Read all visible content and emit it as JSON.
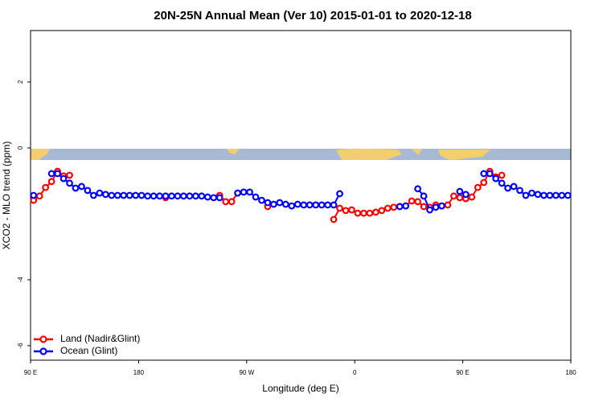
{
  "chart_data": {
    "type": "line",
    "title": "20N-25N Annual Mean (Ver 10)   2015-01-01 to 2020-12-18",
    "x_label": "Longitude (deg E)",
    "y_label": "XCO2 - MLO trend (ppm)",
    "xlim": [
      90,
      540
    ],
    "ylim": [
      -6.44,
      3.56
    ],
    "xticks": [
      {
        "value": 90,
        "label": "90 E"
      },
      180,
      {
        "value": 270,
        "label": "90 W"
      },
      {
        "value": 360,
        "label": "0"
      },
      {
        "value": 450,
        "label": "90 E"
      },
      {
        "value": 540,
        "label": "180"
      }
    ],
    "yticks": [
      -6,
      -4,
      0,
      2
    ],
    "legend": "bottom-left",
    "x": [
      92.5,
      97.5,
      102.5,
      107.5,
      112.5,
      117.5,
      122.5,
      127.5,
      132.5,
      137.5,
      142.5,
      147.5,
      152.5,
      157.5,
      162.5,
      167.5,
      172.5,
      177.5,
      182.5,
      187.5,
      192.5,
      197.5,
      202.5,
      207.5,
      212.5,
      217.5,
      222.5,
      227.5,
      232.5,
      237.5,
      242.5,
      247.5,
      252.5,
      257.5,
      262.5,
      267.5,
      272.5,
      277.5,
      282.5,
      287.5,
      292.5,
      297.5,
      302.5,
      307.5,
      312.5,
      317.5,
      322.5,
      327.5,
      332.5,
      337.5,
      342.5,
      347.5,
      352.5,
      357.5,
      362.5,
      367.5,
      372.5,
      377.5,
      382.5,
      387.5,
      392.5,
      397.5,
      402.5,
      407.5,
      412.5,
      417.5,
      422.5,
      427.5,
      432.5,
      437.5,
      442.5,
      447.5,
      452.5,
      457.5,
      462.5,
      467.5,
      472.5,
      477.5,
      482.5,
      487.5,
      492.5,
      497.5,
      502.5,
      507.5,
      512.5,
      517.5,
      522.5,
      527.5,
      532.5,
      537.5
    ],
    "series": [
      {
        "name": "Land (Nadir&Glint)",
        "color": "#ff0000",
        "values": [
          -1.59,
          -1.46,
          -1.2,
          -1.02,
          -0.71,
          -0.85,
          -0.83,
          null,
          null,
          null,
          null,
          null,
          null,
          null,
          null,
          null,
          null,
          null,
          null,
          null,
          null,
          null,
          -1.51,
          null,
          null,
          null,
          null,
          null,
          null,
          null,
          null,
          -1.44,
          -1.63,
          -1.63,
          -1.37,
          null,
          null,
          null,
          null,
          -1.78,
          null,
          null,
          null,
          null,
          null,
          null,
          null,
          null,
          null,
          null,
          -2.17,
          -1.83,
          -1.9,
          -1.88,
          -1.98,
          -1.98,
          -1.98,
          -1.95,
          -1.9,
          -1.83,
          -1.8,
          -1.78,
          -1.76,
          -1.61,
          -1.63,
          -1.78,
          -1.8,
          -1.73,
          -1.76,
          -1.73,
          -1.46,
          -1.51,
          -1.54,
          -1.49,
          -1.2,
          -1.05,
          -0.71,
          -0.88,
          -0.83,
          null,
          null,
          null,
          null,
          null,
          null,
          null,
          null,
          null,
          null,
          null
        ]
      },
      {
        "name": "Ocean (Glint)",
        "color": "#0000ff",
        "values": [
          -1.44,
          null,
          null,
          -0.78,
          -0.78,
          -0.93,
          -1.07,
          -1.22,
          -1.17,
          -1.29,
          -1.44,
          -1.37,
          -1.41,
          -1.44,
          -1.44,
          -1.44,
          -1.44,
          -1.44,
          -1.44,
          -1.46,
          -1.46,
          -1.46,
          -1.46,
          -1.46,
          -1.46,
          -1.46,
          -1.46,
          -1.46,
          -1.46,
          -1.49,
          -1.51,
          -1.51,
          null,
          null,
          -1.37,
          -1.34,
          -1.34,
          -1.49,
          -1.59,
          -1.66,
          -1.71,
          -1.66,
          -1.71,
          -1.76,
          -1.71,
          -1.73,
          -1.73,
          -1.73,
          -1.73,
          -1.73,
          -1.73,
          -1.39,
          null,
          null,
          null,
          null,
          null,
          null,
          null,
          null,
          null,
          -1.78,
          -1.76,
          null,
          -1.24,
          -1.46,
          -1.88,
          -1.8,
          -1.76,
          null,
          null,
          -1.32,
          -1.41,
          null,
          null,
          -0.78,
          -0.78,
          -0.93,
          -1.07,
          -1.22,
          -1.17,
          -1.29,
          -1.44,
          -1.37,
          -1.41,
          -1.44,
          -1.44,
          -1.44,
          -1.44,
          -1.44
        ]
      }
    ]
  }
}
